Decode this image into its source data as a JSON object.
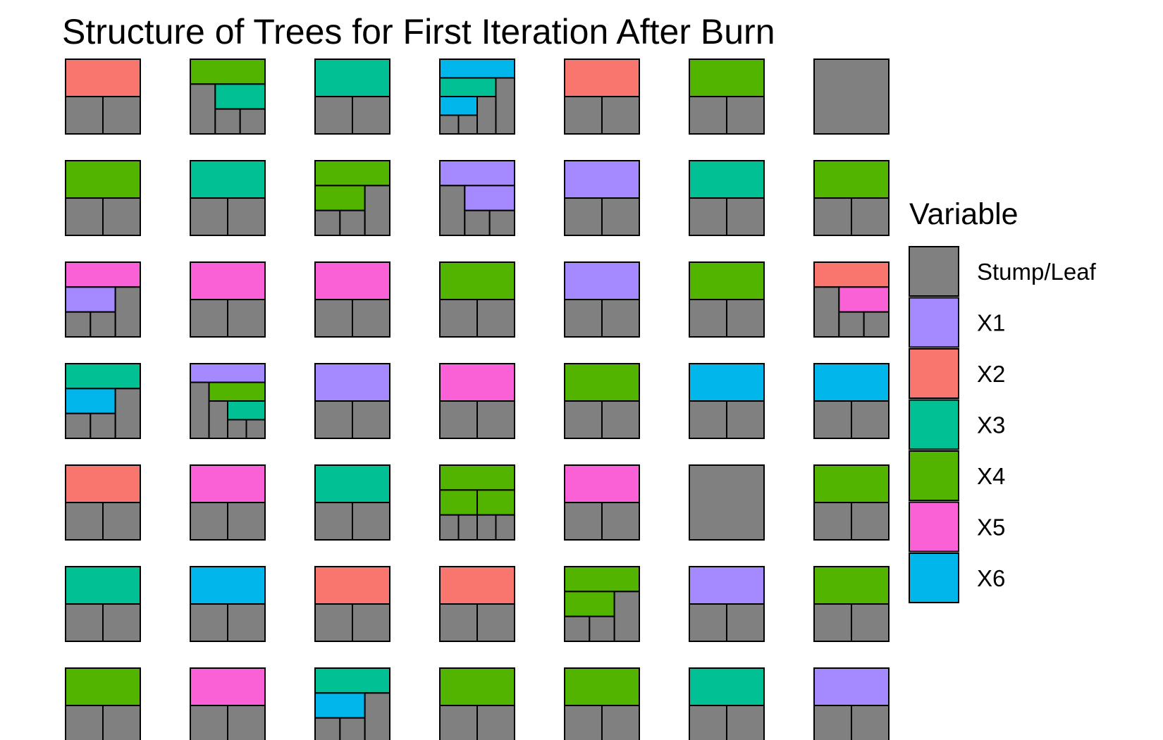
{
  "chart_data": {
    "type": "icicle",
    "title": "Structure of Trees for First Iteration After Burn",
    "legend": {
      "title": "Variable",
      "position": "right",
      "entries": [
        "Stump/Leaf",
        "X1",
        "X2",
        "X3",
        "X4",
        "X5",
        "X6"
      ]
    },
    "colors": {
      "Stump/Leaf": "#808080",
      "X1": "#A58AFF",
      "X2": "#F8766D",
      "X3": "#00C094",
      "X4": "#53B400",
      "X5": "#FB61D7",
      "X6": "#00B6EB"
    },
    "grid": {
      "rows": 7,
      "cols": 7
    },
    "trees": [
      [
        "X2",
        "L",
        "L"
      ],
      [
        "X4",
        "L",
        [
          "X3",
          "L",
          "L"
        ]
      ],
      [
        "X3",
        "L",
        "L"
      ],
      [
        "X6",
        [
          "X3",
          [
            "X6",
            "L",
            "L"
          ],
          "L"
        ],
        "L"
      ],
      [
        "X2",
        "L",
        "L"
      ],
      [
        "X4",
        "L",
        "L"
      ],
      "L",
      [
        "X4",
        "L",
        "L"
      ],
      [
        "X3",
        "L",
        "L"
      ],
      [
        "X4",
        [
          "X4",
          "L",
          "L"
        ],
        "L"
      ],
      [
        "X1",
        "L",
        [
          "X1",
          "L",
          "L"
        ]
      ],
      [
        "X1",
        "L",
        "L"
      ],
      [
        "X3",
        "L",
        "L"
      ],
      [
        "X4",
        "L",
        "L"
      ],
      [
        "X5",
        [
          "X1",
          "L",
          "L"
        ],
        "L"
      ],
      [
        "X5",
        "L",
        "L"
      ],
      [
        "X5",
        "L",
        "L"
      ],
      [
        "X4",
        "L",
        "L"
      ],
      [
        "X1",
        "L",
        "L"
      ],
      [
        "X4",
        "L",
        "L"
      ],
      [
        "X2",
        "L",
        [
          "X5",
          "L",
          "L"
        ]
      ],
      [
        "X3",
        [
          "X6",
          "L",
          "L"
        ],
        "L"
      ],
      [
        "X1",
        "L",
        [
          "X4",
          "L",
          [
            "X3",
            "L",
            "L"
          ]
        ]
      ],
      [
        "X1",
        "L",
        "L"
      ],
      [
        "X5",
        "L",
        "L"
      ],
      [
        "X4",
        "L",
        "L"
      ],
      [
        "X6",
        "L",
        "L"
      ],
      [
        "X6",
        "L",
        "L"
      ],
      [
        "X2",
        "L",
        "L"
      ],
      [
        "X5",
        "L",
        "L"
      ],
      [
        "X3",
        "L",
        "L"
      ],
      [
        "X4",
        [
          "X4",
          "L",
          "L"
        ],
        [
          "X4",
          "L",
          "L"
        ]
      ],
      [
        "X5",
        "L",
        "L"
      ],
      "L",
      [
        "X4",
        "L",
        "L"
      ],
      [
        "X3",
        "L",
        "L"
      ],
      [
        "X6",
        "L",
        "L"
      ],
      [
        "X2",
        "L",
        "L"
      ],
      [
        "X2",
        "L",
        "L"
      ],
      [
        "X4",
        [
          "X4",
          "L",
          "L"
        ],
        "L"
      ],
      [
        "X1",
        "L",
        "L"
      ],
      [
        "X4",
        "L",
        "L"
      ],
      [
        "X4",
        "L",
        "L"
      ],
      [
        "X5",
        "L",
        "L"
      ],
      [
        "X3",
        [
          "X6",
          "L",
          "L"
        ],
        "L"
      ],
      [
        "X4",
        "L",
        "L"
      ],
      [
        "X4",
        "L",
        "L"
      ],
      [
        "X3",
        "L",
        "L"
      ],
      [
        "X1",
        "L",
        "L"
      ]
    ]
  }
}
